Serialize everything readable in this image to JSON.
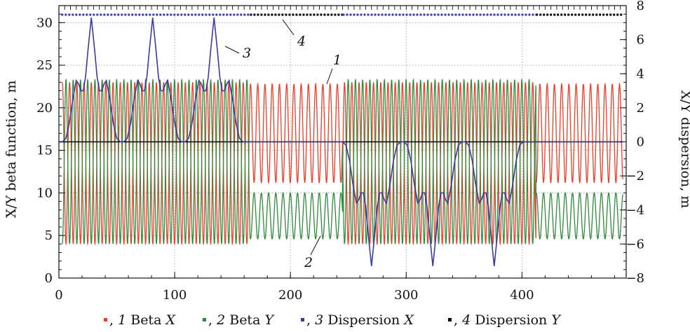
{
  "chart_data": {
    "type": "line",
    "xlabel": "",
    "ylabel": "X/Y beta function, m",
    "y2label": "X/Y dispersion, m",
    "xlim": [
      0,
      490
    ],
    "ylim": [
      0,
      32
    ],
    "y2lim": [
      -8,
      8
    ],
    "xticks": [
      0,
      100,
      200,
      300,
      400
    ],
    "yticks": [
      0,
      5,
      10,
      15,
      20,
      25,
      30
    ],
    "y2ticks": [
      -8,
      -6,
      -4,
      -2,
      0,
      2,
      4,
      6,
      8
    ],
    "grid": true,
    "legend_position": "bottom",
    "series": [
      {
        "id": "beta-x",
        "name": "Beta X",
        "number": "1",
        "color": "#e8402a",
        "axis": "left",
        "period_m": 6.25,
        "segments": [
          {
            "x_range": [
              3,
              165
            ],
            "min": 4.0,
            "max": 23.0
          },
          {
            "x_range": [
              165,
              245
            ],
            "min": 11.2,
            "max": 22.8
          },
          {
            "x_range": [
              245,
              412
            ],
            "min": 4.0,
            "max": 23.0
          },
          {
            "x_range": [
              412,
              487
            ],
            "min": 11.2,
            "max": 22.8
          }
        ]
      },
      {
        "id": "beta-y",
        "name": "Beta Y",
        "number": "2",
        "color": "#2e8b3a",
        "axis": "left",
        "period_m": 6.25,
        "segments": [
          {
            "x_range": [
              3,
              165
            ],
            "min": 4.0,
            "max": 23.3
          },
          {
            "x_range": [
              165,
              245
            ],
            "min": 4.6,
            "max": 10.0
          },
          {
            "x_range": [
              245,
              412
            ],
            "min": 4.0,
            "max": 23.3
          },
          {
            "x_range": [
              412,
              487
            ],
            "min": 4.6,
            "max": 10.0
          }
        ]
      },
      {
        "id": "dispersion-x",
        "name": "Dispersion X",
        "number": "3",
        "color": "#3a3aa0",
        "axis": "right",
        "points": [
          [
            0,
            0
          ],
          [
            3,
            0
          ],
          [
            6,
            0.2
          ],
          [
            9,
            1.1
          ],
          [
            12,
            2.5
          ],
          [
            15,
            3.6
          ],
          [
            17,
            3.4
          ],
          [
            19,
            3.0
          ],
          [
            21,
            3.0
          ],
          [
            23,
            3.8
          ],
          [
            25,
            5.3
          ],
          [
            28,
            7.3
          ],
          [
            31,
            5.3
          ],
          [
            33,
            3.8
          ],
          [
            35,
            3.0
          ],
          [
            37,
            3.0
          ],
          [
            39,
            3.4
          ],
          [
            41,
            3.6
          ],
          [
            44,
            2.5
          ],
          [
            47,
            1.1
          ],
          [
            50,
            0.2
          ],
          [
            53,
            0
          ],
          [
            56,
            0
          ],
          [
            59,
            0.2
          ],
          [
            62,
            1.1
          ],
          [
            65,
            2.5
          ],
          [
            68,
            3.6
          ],
          [
            70,
            3.4
          ],
          [
            72,
            3.0
          ],
          [
            74,
            3.0
          ],
          [
            76,
            3.8
          ],
          [
            78,
            5.3
          ],
          [
            81,
            7.3
          ],
          [
            84,
            5.3
          ],
          [
            86,
            3.8
          ],
          [
            88,
            3.0
          ],
          [
            90,
            3.0
          ],
          [
            92,
            3.4
          ],
          [
            94,
            3.6
          ],
          [
            97,
            2.5
          ],
          [
            100,
            1.1
          ],
          [
            103,
            0.2
          ],
          [
            106,
            0
          ],
          [
            109,
            0
          ],
          [
            112,
            0.2
          ],
          [
            115,
            1.1
          ],
          [
            118,
            2.5
          ],
          [
            121,
            3.6
          ],
          [
            123,
            3.4
          ],
          [
            125,
            3.0
          ],
          [
            127,
            3.0
          ],
          [
            129,
            3.8
          ],
          [
            131,
            5.3
          ],
          [
            134,
            7.3
          ],
          [
            137,
            5.3
          ],
          [
            139,
            3.8
          ],
          [
            141,
            3.0
          ],
          [
            143,
            3.0
          ],
          [
            145,
            3.4
          ],
          [
            147,
            3.6
          ],
          [
            150,
            2.5
          ],
          [
            153,
            1.1
          ],
          [
            156,
            0.2
          ],
          [
            159,
            0
          ],
          [
            245,
            0
          ],
          [
            248,
            -0.2
          ],
          [
            251,
            -1.1
          ],
          [
            254,
            -2.5
          ],
          [
            257,
            -3.6
          ],
          [
            259,
            -3.4
          ],
          [
            261,
            -3.0
          ],
          [
            263,
            -3.0
          ],
          [
            265,
            -3.8
          ],
          [
            267,
            -5.3
          ],
          [
            270,
            -7.3
          ],
          [
            273,
            -5.3
          ],
          [
            275,
            -3.8
          ],
          [
            277,
            -3.0
          ],
          [
            279,
            -3.0
          ],
          [
            281,
            -3.4
          ],
          [
            283,
            -3.6
          ],
          [
            286,
            -2.5
          ],
          [
            289,
            -1.1
          ],
          [
            292,
            -0.2
          ],
          [
            295,
            0
          ],
          [
            298,
            0
          ],
          [
            301,
            -0.2
          ],
          [
            304,
            -1.1
          ],
          [
            307,
            -2.5
          ],
          [
            310,
            -3.6
          ],
          [
            312,
            -3.4
          ],
          [
            314,
            -3.0
          ],
          [
            316,
            -3.0
          ],
          [
            318,
            -3.8
          ],
          [
            320,
            -5.3
          ],
          [
            323,
            -7.3
          ],
          [
            326,
            -5.3
          ],
          [
            328,
            -3.8
          ],
          [
            330,
            -3.0
          ],
          [
            332,
            -3.0
          ],
          [
            334,
            -3.4
          ],
          [
            336,
            -3.6
          ],
          [
            339,
            -2.5
          ],
          [
            342,
            -1.1
          ],
          [
            345,
            -0.2
          ],
          [
            348,
            0
          ],
          [
            351,
            0
          ],
          [
            354,
            -0.2
          ],
          [
            357,
            -1.1
          ],
          [
            360,
            -2.5
          ],
          [
            363,
            -3.6
          ],
          [
            365,
            -3.4
          ],
          [
            367,
            -3.0
          ],
          [
            369,
            -3.0
          ],
          [
            371,
            -3.8
          ],
          [
            373,
            -5.3
          ],
          [
            376,
            -7.3
          ],
          [
            379,
            -5.3
          ],
          [
            381,
            -3.8
          ],
          [
            383,
            -3.0
          ],
          [
            385,
            -3.0
          ],
          [
            387,
            -3.4
          ],
          [
            389,
            -3.6
          ],
          [
            392,
            -2.5
          ],
          [
            395,
            -1.1
          ],
          [
            398,
            -0.2
          ],
          [
            401,
            0
          ],
          [
            487,
            0
          ]
        ],
        "top_band_segments": [
          [
            2,
            165
          ],
          [
            245,
            412
          ]
        ]
      },
      {
        "id": "dispersion-y",
        "name": "Dispersion Y",
        "number": "4",
        "color": "#000000",
        "axis": "right",
        "points": [
          [
            0,
            0
          ],
          [
            487,
            0
          ]
        ],
        "top_band_segments": [
          [
            165,
            245
          ],
          [
            412,
            487
          ]
        ]
      }
    ],
    "annotations": [
      {
        "text": "1",
        "series": "beta-x"
      },
      {
        "text": "2",
        "series": "beta-y"
      },
      {
        "text": "3",
        "series": "dispersion-x"
      },
      {
        "text": "4",
        "series": "dispersion-y"
      }
    ],
    "legend": [
      {
        "number": "1",
        "name": "Beta",
        "var": "X",
        "color": "#e8402a"
      },
      {
        "number": "2",
        "name": "Beta",
        "var": "Y",
        "color": "#2e8b3a"
      },
      {
        "number": "3",
        "name": "Dispersion",
        "var": "X",
        "color": "#3a3aa0"
      },
      {
        "number": "4",
        "name": "Dispersion",
        "var": "Y",
        "color": "#000000"
      }
    ]
  }
}
